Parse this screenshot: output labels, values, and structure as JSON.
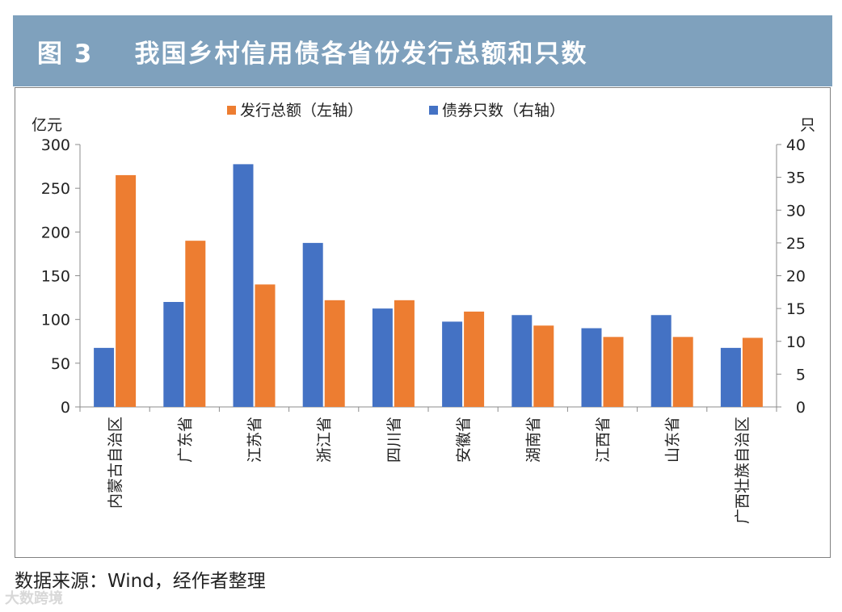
{
  "header": {
    "title": "图 3    我国乡村信用债各省份发行总额和只数"
  },
  "source": "数据来源：Wind，经作者整理",
  "watermark": "大数跨境",
  "chart_data": {
    "type": "bar",
    "categories": [
      "内蒙古自治区",
      "广东省",
      "江苏省",
      "浙江省",
      "四川省",
      "安徽省",
      "湖南省",
      "江西省",
      "山东省",
      "广西壮族自治区"
    ],
    "series": [
      {
        "name": "债券只数（右轴）",
        "axis": "right",
        "color": "#4472c4",
        "values": [
          9,
          16,
          37,
          25,
          15,
          13,
          14,
          12,
          14,
          9
        ]
      },
      {
        "name": "发行总额（左轴）",
        "axis": "left",
        "color": "#ed7d31",
        "values": [
          265,
          190,
          140,
          122,
          122,
          109,
          93,
          80,
          80,
          79
        ]
      }
    ],
    "legend_order": [
      1,
      0
    ],
    "legend_position": "top",
    "ylabel": "亿元",
    "y2label": "只",
    "ylim": [
      0,
      300
    ],
    "y2lim": [
      0,
      40
    ],
    "yticks": [
      "0",
      "50",
      "100",
      "150",
      "200",
      "250",
      "300"
    ],
    "y2ticks": [
      "0",
      "5",
      "10",
      "15",
      "20",
      "25",
      "30",
      "35",
      "40"
    ],
    "grid": false
  }
}
